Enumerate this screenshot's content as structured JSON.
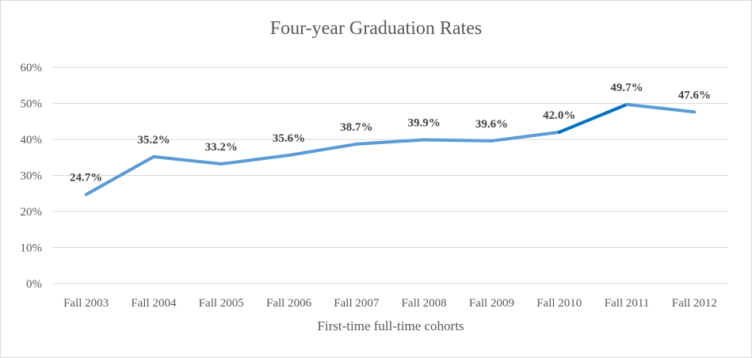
{
  "chart_data": {
    "type": "line",
    "title": "Four-year Graduation Rates",
    "xlabel": "First-time full-time cohorts",
    "ylabel": "",
    "categories": [
      "Fall 2003",
      "Fall 2004",
      "Fall 2005",
      "Fall 2006",
      "Fall 2007",
      "Fall 2008",
      "Fall 2009",
      "Fall 2010",
      "Fall 2011",
      "Fall 2012"
    ],
    "values": [
      24.7,
      35.2,
      33.2,
      35.6,
      38.7,
      39.9,
      39.6,
      42.0,
      49.7,
      47.6
    ],
    "data_labels": [
      "24.7%",
      "35.2%",
      "33.2%",
      "35.6%",
      "38.7%",
      "39.9%",
      "39.6%",
      "42.0%",
      "49.7%",
      "47.6%"
    ],
    "yticks": [
      "0%",
      "10%",
      "20%",
      "30%",
      "40%",
      "50%",
      "60%"
    ],
    "ylim": [
      0,
      60
    ],
    "grid": true,
    "line_color": "#5b9bd5",
    "highlight_color": "#0070c0",
    "highlight_segment": [
      "Fall 2010",
      "Fall 2011"
    ],
    "gridline_color": "#d9d9d9"
  }
}
